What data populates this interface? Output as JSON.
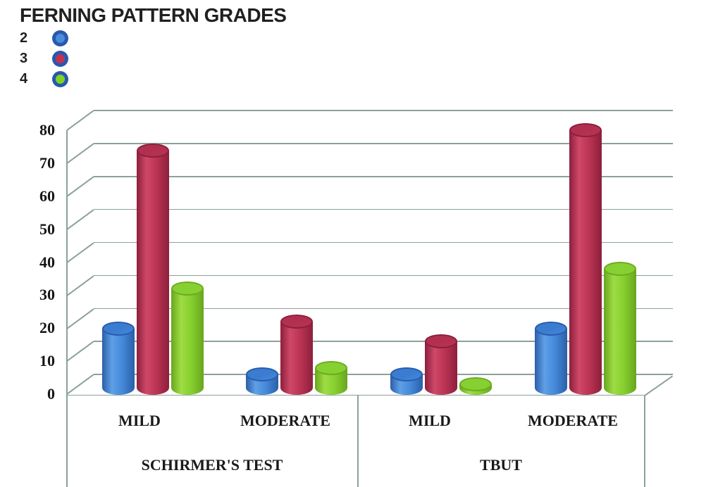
{
  "title": "FERNING PATTERN GRADES",
  "legend": {
    "items": [
      {
        "label": "2",
        "color": "#4a8cdb"
      },
      {
        "label": "3",
        "color": "#c23253"
      },
      {
        "label": "4",
        "color": "#7ed321"
      }
    ],
    "ring_color": "#2759ad"
  },
  "chart_data": {
    "type": "bar",
    "style": "3d-cylinder",
    "title": "FERNING PATTERN GRADES",
    "categories": [
      "MILD",
      "MODERATE",
      "MILD",
      "MODERATE"
    ],
    "category_groups": [
      "SCHIRMER'S TEST",
      "SCHIRMER'S TEST",
      "TBUT",
      "TBUT"
    ],
    "group_labels": [
      "SCHIRMER'S TEST",
      "TBUT"
    ],
    "series": [
      {
        "name": "2",
        "values": [
          18,
          4,
          4,
          18
        ],
        "shades": {
          "light": "#5f9fe6",
          "mid": "#4489da",
          "dark": "#2b5fa8",
          "cap": "#3b7cd0",
          "capEdge": "#2a5cab"
        }
      },
      {
        "name": "3",
        "values": [
          72,
          20,
          14,
          78
        ],
        "shades": {
          "light": "#cf4868",
          "mid": "#bb3353",
          "dark": "#8c1f3c",
          "cap": "#b13050",
          "capEdge": "#8c1f3c"
        }
      },
      {
        "name": "4",
        "values": [
          30,
          6,
          1,
          36
        ],
        "shades": {
          "light": "#9edc44",
          "mid": "#86cf2e",
          "dark": "#68a51f",
          "cap": "#87d033",
          "capEdge": "#6cab22"
        }
      }
    ],
    "ylim": [
      0,
      80
    ],
    "ytick_step": 10,
    "yticks": [
      0,
      10,
      20,
      30,
      40,
      50,
      60,
      70,
      80
    ],
    "grid": true,
    "legend_position": "top-left",
    "grid_color": "#8ba19b",
    "text_color": "#1a1a1a"
  }
}
